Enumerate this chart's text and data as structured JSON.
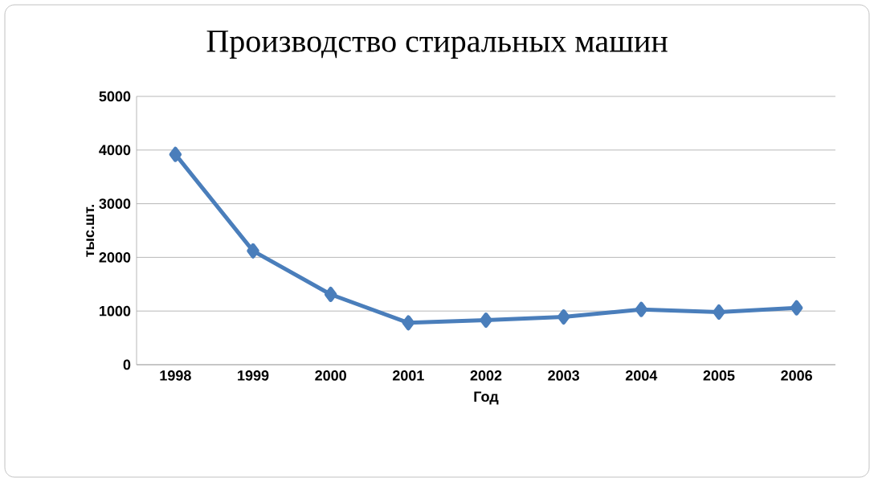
{
  "chart_data": {
    "type": "line",
    "title": "Производство стиральных машин",
    "xlabel": "Год",
    "ylabel": "тыс.шт.",
    "categories": [
      "1998",
      "1999",
      "2000",
      "2001",
      "2002",
      "2003",
      "2004",
      "2005",
      "2006"
    ],
    "values": [
      3920,
      2120,
      1310,
      780,
      830,
      890,
      1030,
      980,
      1060
    ],
    "color": "#4a7ebb",
    "marker": "diamond",
    "line_style": "solid",
    "grid": "y",
    "ylim": [
      0,
      5000
    ],
    "yticks": [
      0,
      1000,
      2000,
      3000,
      4000,
      5000
    ]
  }
}
